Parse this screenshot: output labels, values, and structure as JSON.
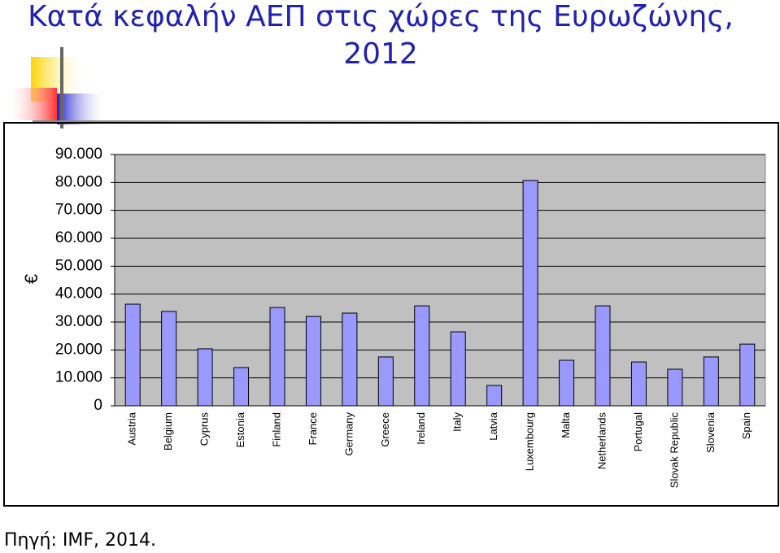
{
  "chart_data": {
    "type": "bar",
    "title_lines": [
      "Κατά κεφαλήν ΑΕΠ στις χώρες της Ευρωζώνης,",
      "2012"
    ],
    "y_label": "€",
    "source": "Πηγή: IMF, 2014.",
    "categories": [
      "Austria",
      "Belgium",
      "Cyprus",
      "Estonia",
      "Finland",
      "France",
      "Germany",
      "Greece",
      "Ireland",
      "Italy",
      "Latvia",
      "Luxembourg",
      "Malta",
      "Netherlands",
      "Portugal",
      "Slovak Republic",
      "Slovenia",
      "Spain"
    ],
    "values": [
      36400,
      33800,
      20400,
      13700,
      35200,
      32000,
      33200,
      17500,
      35800,
      26500,
      7300,
      80700,
      16300,
      35800,
      15700,
      13100,
      17500,
      22100
    ],
    "color": "#9999ff",
    "ylim": [
      0,
      90000
    ],
    "yticks": [
      0,
      {
        "value": 10000,
        "label": "10.000"
      },
      {
        "value": 20000,
        "label": "20.000"
      },
      {
        "value": 30000,
        "label": "30.000"
      },
      {
        "value": 40000,
        "label": "40.000"
      },
      {
        "value": 50000,
        "label": "50.000"
      },
      {
        "value": 60000,
        "label": "60.000"
      },
      {
        "value": 70000,
        "label": "70.000"
      },
      {
        "value": 80000,
        "label": "80.000"
      },
      {
        "value": 90000,
        "label": "90.000"
      }
    ],
    "grid": true
  }
}
